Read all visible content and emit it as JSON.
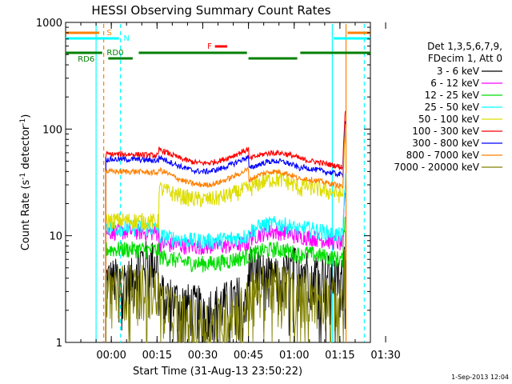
{
  "chart_data": {
    "type": "line",
    "title": "HESSI Observing Summary Count Rates",
    "xlabel": "Start Time (31-Aug-13 23:50:22)",
    "ylabel_main": "Count Rate (s",
    "ylabel_sup1": "-1",
    "ylabel_mid": " detector",
    "ylabel_sup2": "-1",
    "ylabel_end": ")",
    "xlim": [
      -10,
      90
    ],
    "ylim": [
      1,
      1000
    ],
    "yscale": "log",
    "x_ticks": [
      {
        "v": 5,
        "label": "00:00"
      },
      {
        "v": 20,
        "label": "00:15"
      },
      {
        "v": 35,
        "label": "00:30"
      },
      {
        "v": 50,
        "label": "00:45"
      },
      {
        "v": 65,
        "label": "01:00"
      },
      {
        "v": 80,
        "label": "01:15"
      },
      {
        "v": 95,
        "label": "01:30"
      }
    ],
    "y_ticks": [
      {
        "v": 1,
        "label": "1"
      },
      {
        "v": 10,
        "label": "10"
      },
      {
        "v": 100,
        "label": "100"
      },
      {
        "v": 1000,
        "label": "1000"
      }
    ],
    "legend_header": [
      "Det 1,3,5,6,7,9,",
      "FDecim 1, Att 0"
    ],
    "series": [
      {
        "name": "3 - 6 keV",
        "color": "#000000",
        "levels": [
          4,
          6,
          3,
          2.2,
          6,
          4,
          5,
          4,
          10
        ]
      },
      {
        "name": "6 - 12 keV",
        "color": "#ff00ff",
        "levels": [
          11,
          11,
          8.5,
          8,
          9.5,
          11,
          10,
          8.5,
          30
        ]
      },
      {
        "name": "12 - 25 keV",
        "color": "#00dd00",
        "levels": [
          7.5,
          7.5,
          6.5,
          5.5,
          6.5,
          7.5,
          7,
          6,
          20
        ]
      },
      {
        "name": "25 - 50 keV",
        "color": "#00ffff",
        "levels": [
          12,
          12,
          10,
          9,
          11,
          13,
          12,
          10,
          40
        ]
      },
      {
        "name": "50 - 100 keV",
        "color": "#dddd00",
        "levels": [
          14,
          14,
          28,
          22,
          27,
          34,
          30,
          24,
          110
        ]
      },
      {
        "name": "100 - 300 keV",
        "color": "#ff0000",
        "levels": [
          58,
          58,
          65,
          48,
          52,
          60,
          52,
          44,
          175
        ]
      },
      {
        "name": "300 - 800 keV",
        "color": "#0000ff",
        "levels": [
          52,
          52,
          55,
          40,
          42,
          50,
          44,
          37,
          140
        ]
      },
      {
        "name": "800 - 7000 keV",
        "color": "#ff8000",
        "levels": [
          40,
          40,
          42,
          30,
          33,
          40,
          35,
          29,
          120
        ]
      },
      {
        "name": "7000 - 20000 keV",
        "color": "#808000",
        "levels": [
          3.5,
          3.5,
          2.5,
          1.6,
          2.8,
          3.6,
          3.2,
          2.5,
          8
        ]
      }
    ],
    "flags": [
      {
        "label": "S",
        "color": "#ff8000"
      },
      {
        "label": "N",
        "color": "#00ffff"
      },
      {
        "label": "RD0",
        "color": "#008000"
      },
      {
        "label": "RD6",
        "color": "#008000"
      },
      {
        "label": "F",
        "color": "#ff0000"
      }
    ],
    "timestamp": "1-Sep-2013 12:04"
  }
}
